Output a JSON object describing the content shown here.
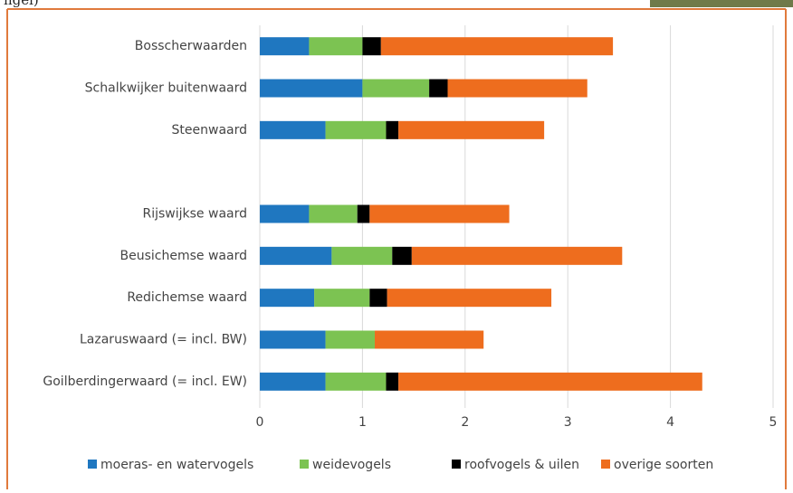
{
  "header": {
    "caption": "ngel)"
  },
  "chart_data": {
    "type": "stacked-barh",
    "categories": [
      "Bosscherwaarden",
      "Schalkwijker buitenwaard",
      "Steenwaard",
      null,
      "Rijswijkse waard",
      "Beusichemse waard",
      "Redichemse waard",
      "Lazaruswaard (= incl. BW)",
      "Goilberdingerwaard (= incl. EW)"
    ],
    "series": [
      {
        "name": "moeras- en watervogels",
        "color": "#1f77c0",
        "values": [
          0.48,
          1.0,
          0.64,
          null,
          0.48,
          0.7,
          0.53,
          0.64,
          0.64
        ]
      },
      {
        "name": "weidevogels",
        "color": "#7cc352",
        "values": [
          0.52,
          0.65,
          0.59,
          null,
          0.47,
          0.59,
          0.54,
          0.48,
          0.59
        ]
      },
      {
        "name": "roofvogels & uilen",
        "color": "#000000",
        "values": [
          0.18,
          0.18,
          0.12,
          null,
          0.12,
          0.19,
          0.17,
          0,
          0.12
        ]
      },
      {
        "name": "overige soorten",
        "color": "#ee6d1e",
        "values": [
          2.26,
          1.36,
          1.42,
          null,
          1.36,
          2.05,
          1.6,
          1.06,
          2.96
        ]
      }
    ],
    "xlim": [
      0,
      5
    ],
    "xticks": [
      0,
      1,
      2,
      3,
      4,
      5
    ],
    "grid": true,
    "legend": "bottom"
  }
}
